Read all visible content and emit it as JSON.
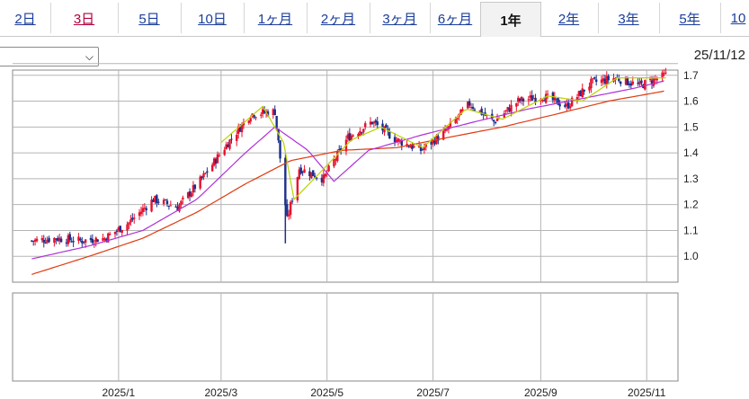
{
  "tabs": [
    {
      "label": "2日",
      "state": "normal"
    },
    {
      "label": "3日",
      "state": "visited"
    },
    {
      "label": "5日",
      "state": "normal"
    },
    {
      "label": "10日",
      "state": "normal"
    },
    {
      "label": "1ヶ月",
      "state": "normal"
    },
    {
      "label": "2ヶ月",
      "state": "normal"
    },
    {
      "label": "3ヶ月",
      "state": "normal"
    },
    {
      "label": "6ヶ月",
      "state": "normal"
    },
    {
      "label": "1年",
      "state": "active"
    },
    {
      "label": "2年",
      "state": "normal"
    },
    {
      "label": "3年",
      "state": "normal"
    },
    {
      "label": "5年",
      "state": "normal"
    },
    {
      "label": "10",
      "state": "normal"
    }
  ],
  "selector": {
    "value": "",
    "icon": "chevron-down-icon"
  },
  "as_of_date": "25/11/12",
  "colors": {
    "up": "#e8102e",
    "down": "#1c2f8a",
    "ma_short": "#b8d200",
    "ma_mid": "#b030d8",
    "ma_long": "#e03a10",
    "grid": "#b5b5b5"
  },
  "chart_data": {
    "type": "candlestick",
    "ylim": [
      0.9,
      1.72
    ],
    "y_ticks": [
      1.0,
      1.1,
      1.2,
      1.3,
      1.4,
      1.5,
      1.6,
      1.7
    ],
    "x_tick_labels": [
      "2025/1",
      "2025/3",
      "2025/5",
      "2025/7",
      "2025/9",
      "2025/11"
    ],
    "series_close_approx": [
      {
        "x": "2024-11-12",
        "y": 1.06
      },
      {
        "x": "2024-11-26",
        "y": 1.07
      },
      {
        "x": "2024-12-10",
        "y": 1.06
      },
      {
        "x": "2024-12-24",
        "y": 1.07
      },
      {
        "x": "2025-01-07",
        "y": 1.13
      },
      {
        "x": "2025-01-21",
        "y": 1.22
      },
      {
        "x": "2025-02-04",
        "y": 1.19
      },
      {
        "x": "2025-02-18",
        "y": 1.3
      },
      {
        "x": "2025-03-04",
        "y": 1.43
      },
      {
        "x": "2025-03-18",
        "y": 1.55
      },
      {
        "x": "2025-04-01",
        "y": 1.56
      },
      {
        "x": "2025-04-08",
        "y": 1.14
      },
      {
        "x": "2025-04-15",
        "y": 1.34
      },
      {
        "x": "2025-04-29",
        "y": 1.3
      },
      {
        "x": "2025-05-13",
        "y": 1.46
      },
      {
        "x": "2025-05-27",
        "y": 1.52
      },
      {
        "x": "2025-06-10",
        "y": 1.45
      },
      {
        "x": "2025-06-24",
        "y": 1.41
      },
      {
        "x": "2025-07-08",
        "y": 1.48
      },
      {
        "x": "2025-07-22",
        "y": 1.59
      },
      {
        "x": "2025-08-05",
        "y": 1.52
      },
      {
        "x": "2025-08-19",
        "y": 1.6
      },
      {
        "x": "2025-09-02",
        "y": 1.62
      },
      {
        "x": "2025-09-16",
        "y": 1.58
      },
      {
        "x": "2025-09-30",
        "y": 1.67
      },
      {
        "x": "2025-10-14",
        "y": 1.69
      },
      {
        "x": "2025-10-28",
        "y": 1.66
      },
      {
        "x": "2025-11-12",
        "y": 1.7
      }
    ],
    "ma_short_approx": [
      {
        "x": "2025-03-01",
        "y": 1.44
      },
      {
        "x": "2025-03-25",
        "y": 1.58
      },
      {
        "x": "2025-04-06",
        "y": 1.44
      },
      {
        "x": "2025-04-12",
        "y": 1.22
      },
      {
        "x": "2025-04-25",
        "y": 1.31
      },
      {
        "x": "2025-05-15",
        "y": 1.45
      },
      {
        "x": "2025-06-01",
        "y": 1.5
      },
      {
        "x": "2025-06-25",
        "y": 1.42
      },
      {
        "x": "2025-07-20",
        "y": 1.57
      },
      {
        "x": "2025-08-10",
        "y": 1.53
      },
      {
        "x": "2025-09-05",
        "y": 1.62
      },
      {
        "x": "2025-09-25",
        "y": 1.6
      },
      {
        "x": "2025-10-15",
        "y": 1.69
      },
      {
        "x": "2025-11-12",
        "y": 1.69
      }
    ],
    "ma_mid_approx": [
      {
        "x": "2024-11-12",
        "y": 0.99
      },
      {
        "x": "2024-12-15",
        "y": 1.04
      },
      {
        "x": "2025-01-15",
        "y": 1.1
      },
      {
        "x": "2025-02-15",
        "y": 1.22
      },
      {
        "x": "2025-03-15",
        "y": 1.4
      },
      {
        "x": "2025-04-01",
        "y": 1.5
      },
      {
        "x": "2025-04-20",
        "y": 1.41
      },
      {
        "x": "2025-05-05",
        "y": 1.29
      },
      {
        "x": "2025-05-25",
        "y": 1.41
      },
      {
        "x": "2025-06-25",
        "y": 1.47
      },
      {
        "x": "2025-07-25",
        "y": 1.52
      },
      {
        "x": "2025-08-25",
        "y": 1.57
      },
      {
        "x": "2025-09-25",
        "y": 1.61
      },
      {
        "x": "2025-10-25",
        "y": 1.65
      },
      {
        "x": "2025-11-12",
        "y": 1.68
      }
    ],
    "ma_long_approx": [
      {
        "x": "2024-11-12",
        "y": 0.93
      },
      {
        "x": "2024-12-15",
        "y": 1.0
      },
      {
        "x": "2025-01-15",
        "y": 1.07
      },
      {
        "x": "2025-02-15",
        "y": 1.17
      },
      {
        "x": "2025-03-15",
        "y": 1.28
      },
      {
        "x": "2025-04-10",
        "y": 1.37
      },
      {
        "x": "2025-05-10",
        "y": 1.41
      },
      {
        "x": "2025-06-10",
        "y": 1.42
      },
      {
        "x": "2025-07-10",
        "y": 1.46
      },
      {
        "x": "2025-08-10",
        "y": 1.5
      },
      {
        "x": "2025-09-10",
        "y": 1.55
      },
      {
        "x": "2025-10-10",
        "y": 1.6
      },
      {
        "x": "2025-11-12",
        "y": 1.64
      }
    ],
    "grid": true
  }
}
